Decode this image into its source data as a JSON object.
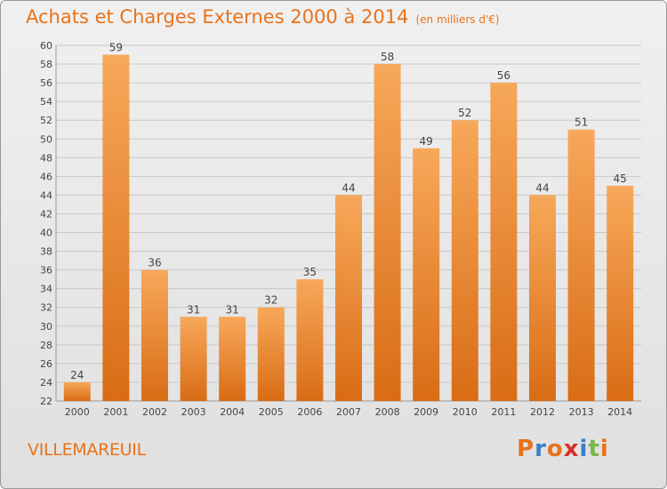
{
  "page": {
    "title": "Achats et Charges Externes 2000 à 2014",
    "unit": "(en milliers d'€)",
    "commune": "VILLEMAREUIL",
    "logo": "Proxiti"
  },
  "colors": {
    "accent": "#e8731a",
    "bar_top": "#f7a85a",
    "bar_bottom": "#d96c15",
    "logo_letters": [
      "#e8731a",
      "#3a7fc4",
      "#e8731a",
      "#d9302c",
      "#3a7fc4",
      "#7ab648",
      "#e8731a"
    ]
  },
  "chart_data": {
    "type": "bar",
    "title": "Achats et Charges Externes 2000 à 2014",
    "subtitle": "(en milliers d'€)",
    "categories": [
      "2000",
      "2001",
      "2002",
      "2003",
      "2004",
      "2005",
      "2006",
      "2007",
      "2008",
      "2009",
      "2010",
      "2011",
      "2012",
      "2013",
      "2014"
    ],
    "values": [
      24,
      59,
      36,
      31,
      31,
      32,
      35,
      44,
      58,
      49,
      52,
      56,
      44,
      51,
      45
    ],
    "ylim": [
      22,
      60
    ],
    "yticks": [
      22,
      24,
      26,
      28,
      30,
      32,
      34,
      36,
      38,
      40,
      42,
      44,
      46,
      48,
      50,
      52,
      54,
      56,
      58,
      60
    ],
    "grid": true,
    "data_labels": true
  }
}
